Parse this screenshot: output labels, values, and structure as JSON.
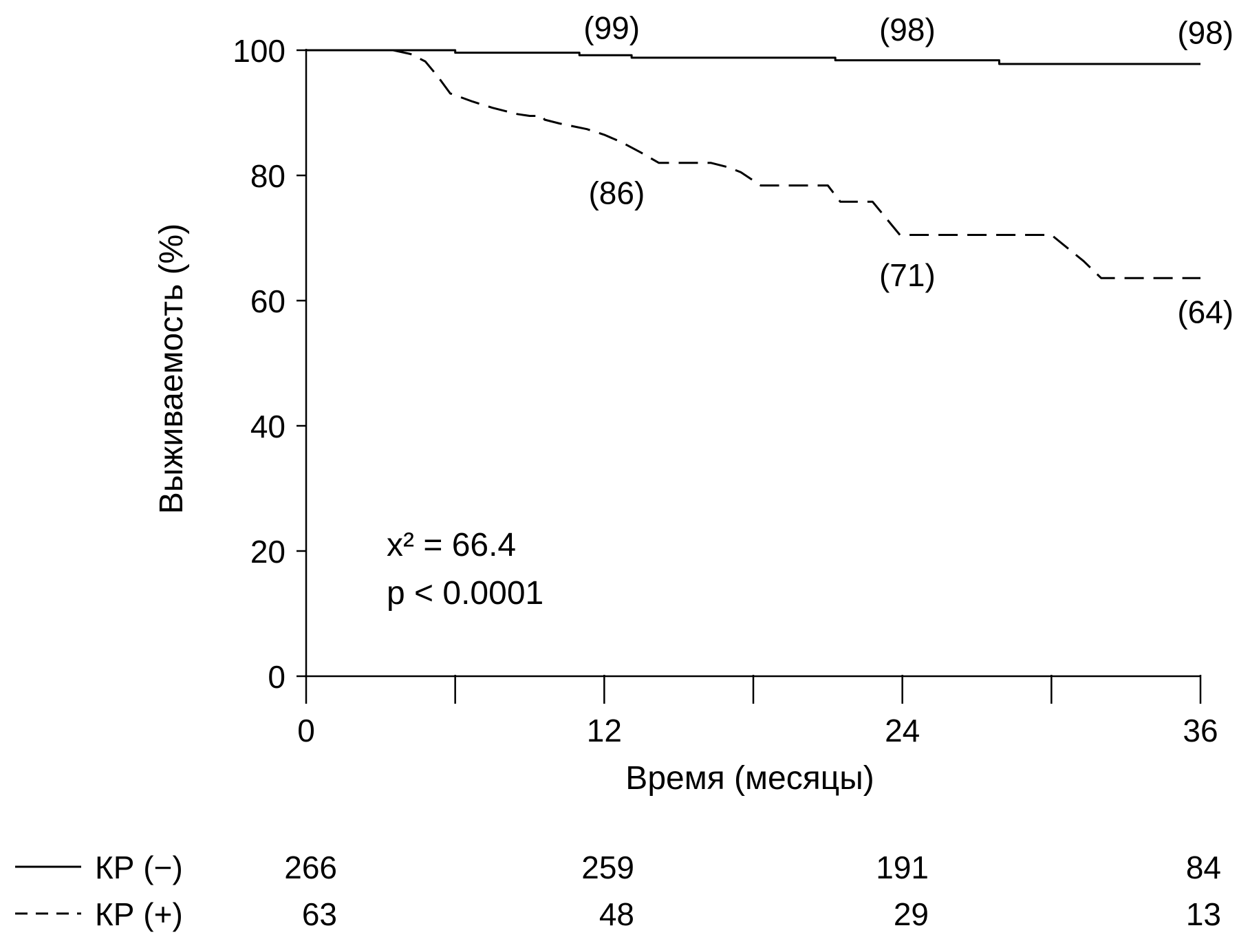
{
  "chart_data": {
    "type": "line",
    "ylabel": "Выживаемость (%)",
    "xlabel": "Время (месяцы)",
    "xlim": [
      0,
      36
    ],
    "ylim": [
      0,
      100
    ],
    "x_ticks": [
      "0",
      "12",
      "24",
      "36"
    ],
    "y_ticks": [
      "0",
      "20",
      "40",
      "60",
      "80",
      "100"
    ],
    "grid": false,
    "stats": {
      "chi": "x² = 66.4",
      "p": "p < 0.0001"
    },
    "series": [
      {
        "name": "КР (−)",
        "style": "solid",
        "points": [
          [
            0,
            100
          ],
          [
            6,
            100
          ],
          [
            6,
            99.6
          ],
          [
            11,
            99.6
          ],
          [
            11,
            99.2
          ],
          [
            13.1,
            99.2
          ],
          [
            13.1,
            98.8
          ],
          [
            21.3,
            98.8
          ],
          [
            21.3,
            98.4
          ],
          [
            27.9,
            98.4
          ],
          [
            27.9,
            97.8
          ],
          [
            36,
            97.8
          ]
        ],
        "annotations": [
          {
            "x": 12.3,
            "y": 103.7,
            "label": "(99)"
          },
          {
            "x": 24.2,
            "y": 103.4,
            "label": "(98)"
          },
          {
            "x": 36.2,
            "y": 102.9,
            "label": "(98)"
          }
        ],
        "at_risk": [
          "266",
          "259",
          "191",
          "84"
        ]
      },
      {
        "name": "КР (+)",
        "style": "dashed",
        "points": [
          [
            0,
            100
          ],
          [
            3.5,
            100
          ],
          [
            4.2,
            99.4
          ],
          [
            4.8,
            98.2
          ],
          [
            5.3,
            95.8
          ],
          [
            5.8,
            93.1
          ],
          [
            6.7,
            91.8
          ],
          [
            7.5,
            90.8
          ],
          [
            8.5,
            89.8
          ],
          [
            9,
            89.5
          ],
          [
            9.5,
            89.5
          ],
          [
            9.6,
            88.9
          ],
          [
            10.2,
            88.3
          ],
          [
            11.3,
            87.4
          ],
          [
            12,
            86.5
          ],
          [
            12.7,
            85.3
          ],
          [
            13.5,
            83.6
          ],
          [
            14.2,
            82
          ],
          [
            15.3,
            82
          ],
          [
            16.3,
            82
          ],
          [
            17,
            81.3
          ],
          [
            17.5,
            80.5
          ],
          [
            18.3,
            78.4
          ],
          [
            21,
            78.4
          ],
          [
            21.5,
            75.8
          ],
          [
            22.8,
            75.8
          ],
          [
            23.9,
            70.5
          ],
          [
            24.5,
            70.5
          ],
          [
            30,
            70.5
          ],
          [
            31.3,
            66.3
          ],
          [
            32,
            63.6
          ],
          [
            36,
            63.6
          ]
        ],
        "annotations": [
          {
            "x": 12.5,
            "y": 77.3,
            "label": "(86)"
          },
          {
            "x": 24.2,
            "y": 64.2,
            "label": "(71)"
          },
          {
            "x": 36.2,
            "y": 58.3,
            "label": "(64)"
          }
        ],
        "at_risk": [
          "63",
          "48",
          "29",
          "13"
        ]
      }
    ]
  }
}
